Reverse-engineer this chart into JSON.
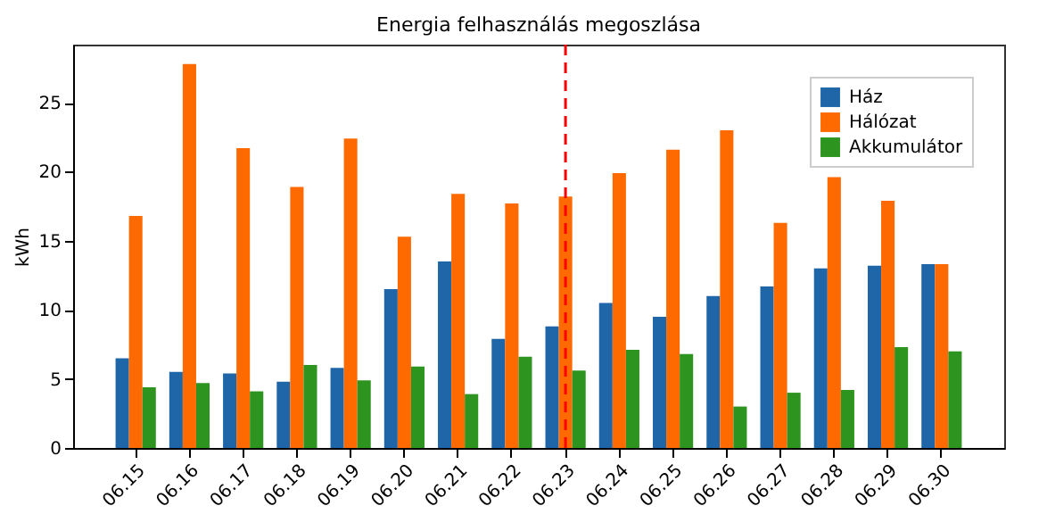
{
  "chart_data": {
    "type": "bar",
    "title": "Energia felhasználás megoszlása",
    "ylabel": "kWh",
    "categories": [
      "06.15",
      "06.16",
      "06.17",
      "06.18",
      "06.19",
      "06.20",
      "06.21",
      "06.22",
      "06.23",
      "06.24",
      "06.25",
      "06.26",
      "06.27",
      "06.28",
      "06.29",
      "06.30"
    ],
    "series": [
      {
        "name": "Ház",
        "color": "#1f66a8",
        "values": [
          6.5,
          5.5,
          5.4,
          4.8,
          5.8,
          11.5,
          13.5,
          7.9,
          8.8,
          10.5,
          9.5,
          11.0,
          11.7,
          13.0,
          13.2,
          13.3
        ]
      },
      {
        "name": "Hálózat",
        "color": "#ff6a00",
        "values": [
          16.8,
          27.8,
          21.7,
          18.9,
          22.4,
          15.3,
          18.4,
          17.7,
          18.2,
          19.9,
          21.6,
          23.0,
          16.3,
          19.6,
          17.9,
          13.3
        ]
      },
      {
        "name": "Akkumulátor",
        "color": "#2e9420",
        "values": [
          4.4,
          4.7,
          4.1,
          6.0,
          4.9,
          5.9,
          3.9,
          6.6,
          5.6,
          7.1,
          6.8,
          3.0,
          4.0,
          4.2,
          7.3,
          7.0
        ]
      }
    ],
    "ylim": [
      0,
      29.2
    ],
    "yticks": [
      0,
      5,
      10,
      15,
      20,
      25
    ],
    "grid": false,
    "legend": "top right",
    "ref_lines": [
      {
        "axis": "x",
        "value": "06.23",
        "color": "#ff0000",
        "line_style": "dashed"
      }
    ]
  }
}
